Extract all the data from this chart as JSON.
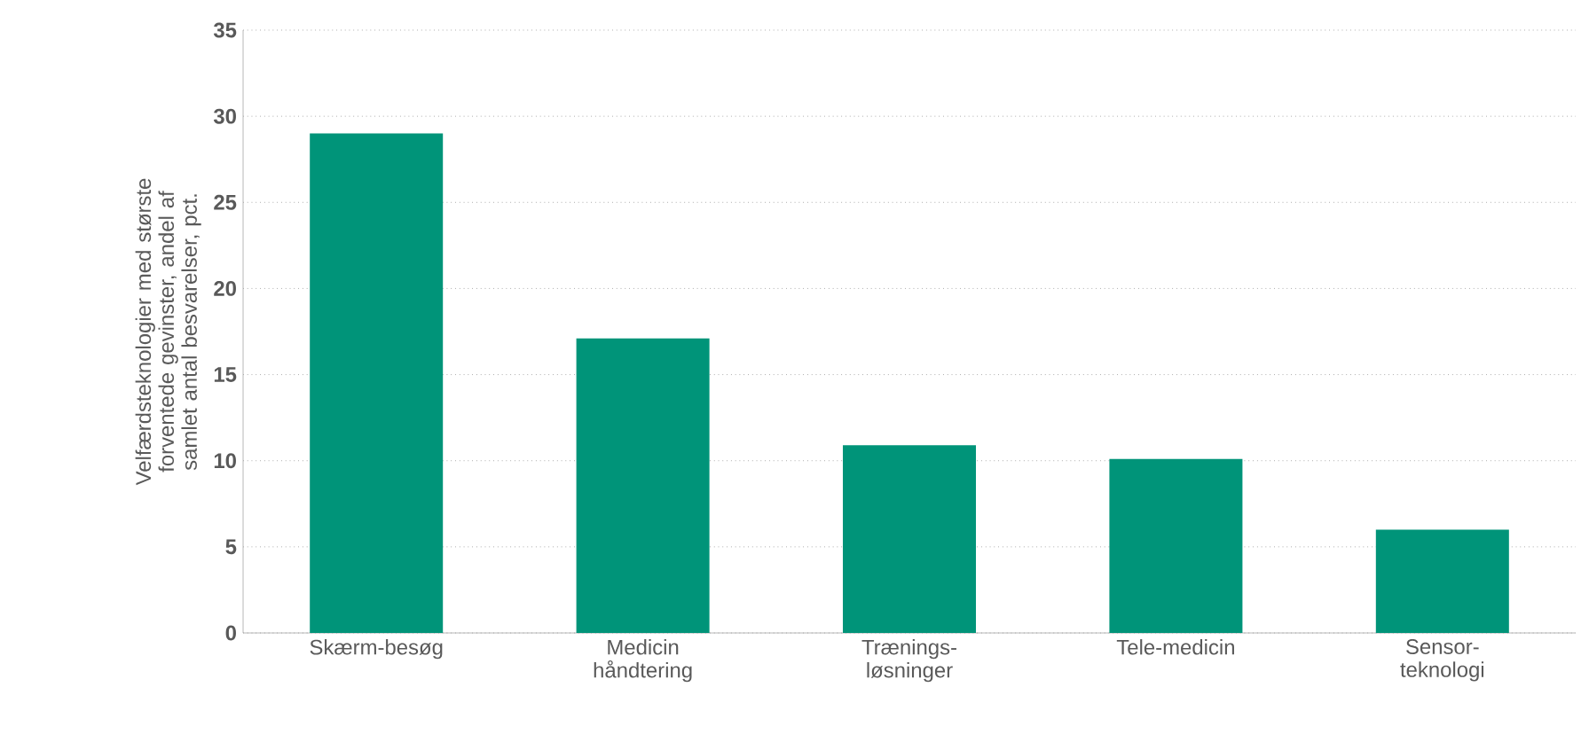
{
  "chart_data": {
    "type": "bar",
    "ylabel": "Velfærdsteknologier med største forventede gevinster, andel af samlet antal besvarelser, pct.",
    "categories": [
      "Skærm-besøg",
      "Medicin håndtering",
      "Trænings-løsninger",
      "Tele-medicin",
      "Sensor-teknologi"
    ],
    "values": [
      29,
      17.1,
      10.9,
      10.1,
      6
    ],
    "color": "#009479",
    "ylim": [
      0,
      35
    ],
    "yticks": [
      0,
      5,
      10,
      15,
      20,
      25,
      30,
      35
    ],
    "grid": "y"
  }
}
